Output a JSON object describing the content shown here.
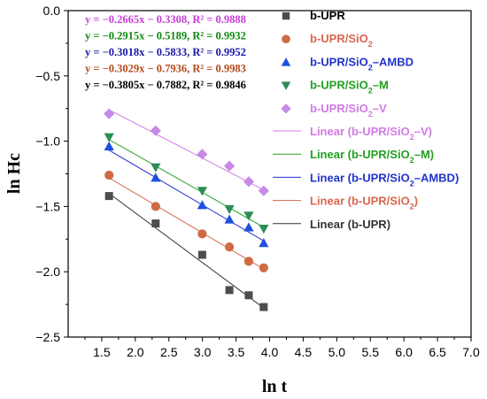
{
  "chart_data": {
    "type": "scatter",
    "title": "",
    "xlabel": "ln t",
    "ylabel": "ln Hc",
    "xlim": [
      1.0,
      7.0
    ],
    "ylim": [
      -2.5,
      0.0
    ],
    "x_ticks": [
      "1.5",
      "2.0",
      "2.5",
      "3.0",
      "3.5",
      "4.0",
      "4.5",
      "5.0",
      "5.5",
      "6.0",
      "6.5",
      "7.0"
    ],
    "y_ticks": [
      "0.0",
      "−0.5",
      "−1.0",
      "−1.5",
      "−2.0",
      "−2.5"
    ],
    "grid": false,
    "legend_position": "top-right",
    "x": [
      1.609,
      2.303,
      2.996,
      3.401,
      3.689,
      3.912
    ],
    "series": [
      {
        "name": "b-UPR",
        "base": "b-UPR",
        "sub": "",
        "tail": "",
        "marker": "square",
        "color": "#4d4d4d",
        "values": [
          -1.42,
          -1.63,
          -1.87,
          -2.14,
          -2.18,
          -2.27
        ],
        "fit_line": {
          "name": "Linear (b-UPR)",
          "base": "b-UPR",
          "sub": "",
          "tail": "",
          "color": "#333333",
          "slope": -0.3805,
          "intercept": -0.7882
        },
        "equation": "y = −0.3805x − 0.7882,  R² = 0.9846",
        "equation_color": "#000000"
      },
      {
        "name": "b-UPR/SiO2",
        "base": "b-UPR/SiO",
        "sub": "2",
        "tail": "",
        "marker": "circle",
        "color": "#cf6b44",
        "values": [
          -1.26,
          -1.5,
          -1.71,
          -1.81,
          -1.92,
          -1.97
        ],
        "fit_line": {
          "name": "Linear (b-UPR/SiO2)",
          "base": "b-UPR/SiO",
          "sub": "2",
          "tail": "",
          "color": "#d9664f",
          "slope": -0.3029,
          "intercept": -0.7936
        },
        "equation": "y = −0.3029x − 0.7936,  R² = 0.9983",
        "equation_color": "#b34a1c"
      },
      {
        "name": "b-UPR/SiO2–AMBD",
        "base": "b-UPR/SiO",
        "sub": "2",
        "tail": "–AMBD",
        "marker": "triangle-up",
        "color": "#1f4fe0",
        "values": [
          -1.04,
          -1.28,
          -1.49,
          -1.6,
          -1.66,
          -1.78
        ],
        "fit_line": {
          "name": "Linear (b-UPR/SiO2–AMBD)",
          "base": "b-UPR/SiO",
          "sub": "2",
          "tail": "–AMBD",
          "color": "#2233cc",
          "slope": -0.3018,
          "intercept": -0.5833
        },
        "equation": "y = −0.3018x − 0.5833,  R² = 0.9952",
        "equation_color": "#1a1aa6"
      },
      {
        "name": "b-UPR/SiO2–M",
        "base": "b-UPR/SiO",
        "sub": "2",
        "tail": "–M",
        "marker": "triangle-down",
        "color": "#2e8b57",
        "values": [
          -0.97,
          -1.2,
          -1.38,
          -1.52,
          -1.57,
          -1.67
        ],
        "fit_line": {
          "name": "Linear (b-UPR/SiO2–M)",
          "base": "b-UPR/SiO",
          "sub": "2",
          "tail": "–M",
          "color": "#22a022",
          "slope": -0.2915,
          "intercept": -0.5189
        },
        "equation": "y = −0.2915x − 0.5189,  R² = 0.9932",
        "equation_color": "#118811"
      },
      {
        "name": "b-UPR/SiO2–V",
        "base": "b-UPR/SiO",
        "sub": "2",
        "tail": "–V",
        "marker": "diamond",
        "color": "#c58ae6",
        "values": [
          -0.79,
          -0.92,
          -1.1,
          -1.19,
          -1.31,
          -1.38
        ],
        "fit_line": {
          "name": "Linear (b-UPR/SiO2–V)",
          "base": "b-UPR/SiO",
          "sub": "2",
          "tail": "–V",
          "color": "#d27ae6",
          "slope": -0.2665,
          "intercept": -0.3308
        },
        "equation": "y = −0.2665x − 0.3308,  R² = 0.9888",
        "equation_color": "#c83cd8"
      }
    ],
    "legend_order": [
      {
        "kind": "marker",
        "series": 0
      },
      {
        "kind": "marker",
        "series": 1
      },
      {
        "kind": "marker",
        "series": 2
      },
      {
        "kind": "marker",
        "series": 3
      },
      {
        "kind": "marker",
        "series": 4
      },
      {
        "kind": "line",
        "series": 4
      },
      {
        "kind": "line",
        "series": 3
      },
      {
        "kind": "line",
        "series": 2
      },
      {
        "kind": "line",
        "series": 1
      },
      {
        "kind": "line",
        "series": 0
      }
    ],
    "equation_order": [
      4,
      3,
      2,
      1,
      0
    ]
  }
}
